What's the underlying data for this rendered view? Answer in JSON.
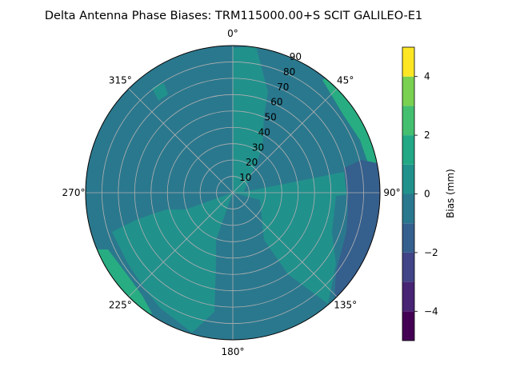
{
  "chart_data": {
    "type": "heatmap",
    "subtype": "polar-contour",
    "title": "Delta Antenna Phase Biases: TRM115000.00+S  SCIT GALILEO-E1",
    "angular_ticks": [
      "0°",
      "45°",
      "90°",
      "135°",
      "180°",
      "225°",
      "270°",
      "315°"
    ],
    "angular_tick_values": [
      0,
      45,
      90,
      135,
      180,
      225,
      270,
      315
    ],
    "radial_ticks": [
      "10",
      "20",
      "30",
      "40",
      "50",
      "60",
      "70",
      "80",
      "90"
    ],
    "radial_tick_values": [
      10,
      20,
      30,
      40,
      50,
      60,
      70,
      80,
      90
    ],
    "rlim": [
      0,
      90
    ],
    "grid": true,
    "colorbar": {
      "label": "Bias (mm)",
      "ticks": [
        "−4",
        "−2",
        "0",
        "2",
        "4"
      ],
      "tick_values": [
        -4,
        -2,
        0,
        2,
        4
      ],
      "range": [
        -5,
        5
      ],
      "levels": [
        -5,
        -4.5,
        -4,
        -3.5,
        -3,
        -2.5,
        -2,
        -1.5,
        -1,
        -0.5,
        0,
        0.5,
        1,
        1.5,
        2,
        2.5,
        3,
        3.5,
        4,
        4.5,
        5
      ],
      "colors": [
        "#440154",
        "#472d7b",
        "#3b528b",
        "#2c728e",
        "#21918c",
        "#27ad81",
        "#5ec962",
        "#aadc32",
        "#fde725"
      ],
      "band_values": [
        -4.5,
        -3.5,
        -2.5,
        -1.5,
        -0.5,
        0.5,
        1.5,
        2.5,
        3.5,
        4.5
      ],
      "band_colors": [
        "#440154",
        "#482475",
        "#414487",
        "#355f8d",
        "#2a788e",
        "#21918c",
        "#22a884",
        "#44bf70",
        "#7ad151",
        "#fde725"
      ]
    },
    "regions": [
      {
        "label": "background",
        "bias": -0.5
      },
      {
        "label": "east-centre lobe",
        "bias": 0.5,
        "az_range": [
          0,
          100
        ],
        "el_range": [
          0,
          90
        ]
      },
      {
        "label": "south-west lobe",
        "bias": 0.5,
        "az_range": [
          180,
          270
        ],
        "el_range": [
          30,
          90
        ]
      },
      {
        "label": "north-east rim",
        "bias": 1.5,
        "az_range": [
          38,
          60
        ],
        "el_range": [
          70,
          90
        ]
      },
      {
        "label": "south-west rim",
        "bias": 1.5,
        "az_range": [
          235,
          250
        ],
        "el_range": [
          75,
          90
        ]
      },
      {
        "label": "east-south-east trough",
        "bias": -1.5,
        "az_range": [
          95,
          140
        ],
        "el_range": [
          75,
          90
        ]
      }
    ]
  }
}
